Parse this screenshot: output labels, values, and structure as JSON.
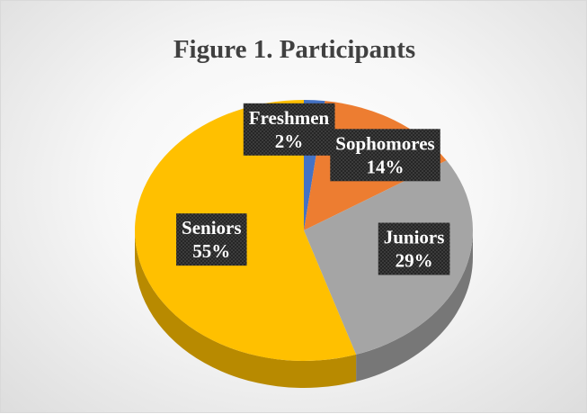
{
  "chart_data": {
    "type": "pie",
    "title": "Figure 1. Participants",
    "categories": [
      "Freshmen",
      "Sophomores",
      "Juniors",
      "Seniors"
    ],
    "values": [
      2,
      14,
      29,
      55
    ],
    "value_labels": [
      "2%",
      "14%",
      "29%",
      "55%"
    ],
    "colors": [
      "#4472c4",
      "#ed7d31",
      "#a5a5a5",
      "#ffc000"
    ],
    "style": "3d",
    "legend": "none"
  }
}
